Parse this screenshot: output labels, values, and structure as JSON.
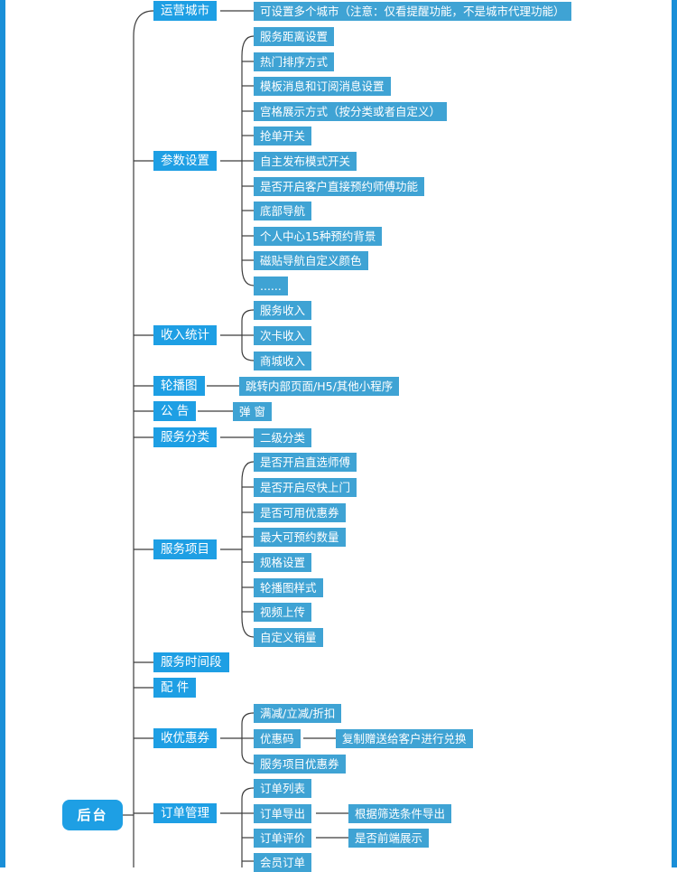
{
  "root": "后台",
  "categories": {
    "city": "运营城市",
    "params": "参数设置",
    "income": "收入统计",
    "carousel": "轮播图",
    "notice": "公 告",
    "svc_cat": "服务分类",
    "svc_item": "服务项目",
    "svc_time": "服务时间段",
    "parts": "配 件",
    "coupon": "收优惠券",
    "order": "订单管理"
  },
  "leaves": {
    "city_multi": "可设置多个城市（注意：仅看提醒功能，不是城市代理功能）",
    "params": [
      "服务距离设置",
      "热门排序方式",
      "模板消息和订阅消息设置",
      "宫格展示方式（按分类或者自定义）",
      "抢单开关",
      "自主发布模式开关",
      "是否开启客户直接预约师傅功能",
      "底部导航",
      "个人中心15种预约背景",
      "磁贴导航自定义颜色",
      "......"
    ],
    "income": [
      "服务收入",
      "次卡收入",
      "商城收入"
    ],
    "carousel_jump": "跳转内部页面/H5/其他小程序",
    "notice_popup": "弹 窗",
    "svc_cat_sub": "二级分类",
    "svc_item": [
      "是否开启直选师傅",
      "是否开启尽快上门",
      "是否可用优惠券",
      "最大可预约数量",
      "规格设置",
      "轮播图样式",
      "视频上传",
      "自定义销量"
    ],
    "coupon": [
      "满减/立减/折扣",
      "优惠码",
      "服务项目优惠券"
    ],
    "coupon_code_detail": "复制赠送给客户进行兑换",
    "order": [
      "订单列表",
      "订单导出",
      "订单评价",
      "会员订单"
    ],
    "order_export_detail": "根据筛选条件导出",
    "order_review_detail": "是否前端展示"
  },
  "colors": {
    "frame": "#1a8fd8",
    "level1": "#1e9fe4",
    "level2": "#3fa3d4",
    "connector": "#3c3c3c"
  }
}
